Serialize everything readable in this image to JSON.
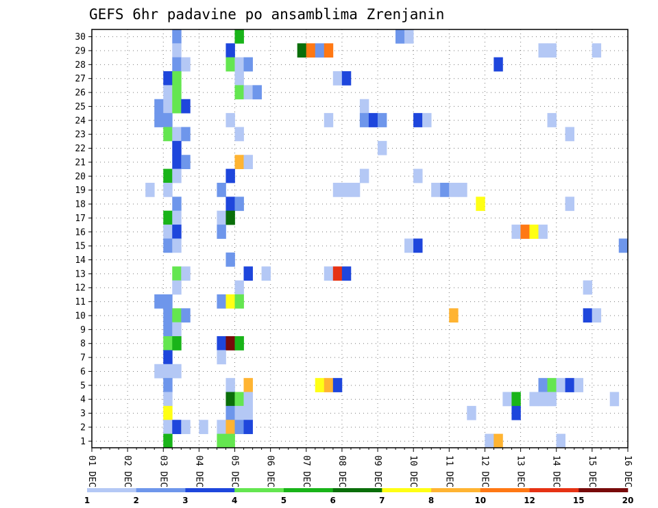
{
  "chart_data": {
    "type": "heatmap",
    "title": "GEFS 6hr padavine po ansamblima Zrenjanin",
    "xlabel": "",
    "ylabel": "",
    "y_ticks": [
      "1",
      "2",
      "3",
      "4",
      "5",
      "6",
      "7",
      "8",
      "9",
      "10",
      "11",
      "12",
      "13",
      "14",
      "15",
      "16",
      "17",
      "18",
      "19",
      "20",
      "21",
      "22",
      "23",
      "24",
      "25",
      "26",
      "27",
      "28",
      "29",
      "30"
    ],
    "ylim": [
      0,
      30
    ],
    "x_ticks": [
      "01 DEC",
      "02 DEC",
      "03 DEC",
      "04 DEC",
      "05 DEC",
      "06 DEC",
      "07 DEC",
      "08 DEC",
      "09 DEC",
      "10 DEC",
      "11 DEC",
      "12 DEC",
      "13 DEC",
      "14 DEC",
      "15 DEC",
      "16 DEC"
    ],
    "xlim_days": [
      1,
      16
    ],
    "steps_per_day": 4,
    "grid": true,
    "levels": [
      "1",
      "2",
      "3",
      "4",
      "5",
      "6",
      "7",
      "8",
      "10",
      "12",
      "15",
      "20"
    ],
    "colors": [
      "#b4c8f5",
      "#6e96eb",
      "#1e46dc",
      "#64e650",
      "#19b419",
      "#0a6e0a",
      "#ffff14",
      "#ffb432",
      "#ff7814",
      "#e63214",
      "#780a0a"
    ],
    "cells": [
      {
        "member": 30,
        "step": 9,
        "cat": 1
      },
      {
        "member": 30,
        "step": 16,
        "cat": 4
      },
      {
        "member": 30,
        "step": 34,
        "cat": 1
      },
      {
        "member": 30,
        "step": 35,
        "cat": 0
      },
      {
        "member": 29,
        "step": 9,
        "cat": 0
      },
      {
        "member": 29,
        "step": 15,
        "cat": 2
      },
      {
        "member": 29,
        "step": 23,
        "cat": 5
      },
      {
        "member": 29,
        "step": 24,
        "cat": 8
      },
      {
        "member": 29,
        "step": 25,
        "cat": 1
      },
      {
        "member": 29,
        "step": 26,
        "cat": 8
      },
      {
        "member": 29,
        "step": 50,
        "cat": 0
      },
      {
        "member": 29,
        "step": 51,
        "cat": 0
      },
      {
        "member": 29,
        "step": 56,
        "cat": 0
      },
      {
        "member": 28,
        "step": 9,
        "cat": 1
      },
      {
        "member": 28,
        "step": 10,
        "cat": 0
      },
      {
        "member": 28,
        "step": 15,
        "cat": 3
      },
      {
        "member": 28,
        "step": 16,
        "cat": 0
      },
      {
        "member": 28,
        "step": 17,
        "cat": 1
      },
      {
        "member": 28,
        "step": 45,
        "cat": 2
      },
      {
        "member": 27,
        "step": 8,
        "cat": 2
      },
      {
        "member": 27,
        "step": 9,
        "cat": 3
      },
      {
        "member": 27,
        "step": 16,
        "cat": 0
      },
      {
        "member": 27,
        "step": 27,
        "cat": 0
      },
      {
        "member": 27,
        "step": 28,
        "cat": 2
      },
      {
        "member": 26,
        "step": 8,
        "cat": 0
      },
      {
        "member": 26,
        "step": 9,
        "cat": 3
      },
      {
        "member": 26,
        "step": 16,
        "cat": 3
      },
      {
        "member": 26,
        "step": 17,
        "cat": 0
      },
      {
        "member": 26,
        "step": 18,
        "cat": 1
      },
      {
        "member": 25,
        "step": 7,
        "cat": 1
      },
      {
        "member": 25,
        "step": 8,
        "cat": 0
      },
      {
        "member": 25,
        "step": 9,
        "cat": 3
      },
      {
        "member": 25,
        "step": 10,
        "cat": 2
      },
      {
        "member": 25,
        "step": 30,
        "cat": 0
      },
      {
        "member": 24,
        "step": 7,
        "cat": 1
      },
      {
        "member": 24,
        "step": 8,
        "cat": 1
      },
      {
        "member": 24,
        "step": 15,
        "cat": 0
      },
      {
        "member": 24,
        "step": 26,
        "cat": 0
      },
      {
        "member": 24,
        "step": 30,
        "cat": 1
      },
      {
        "member": 24,
        "step": 31,
        "cat": 2
      },
      {
        "member": 24,
        "step": 32,
        "cat": 1
      },
      {
        "member": 24,
        "step": 36,
        "cat": 2
      },
      {
        "member": 24,
        "step": 37,
        "cat": 0
      },
      {
        "member": 24,
        "step": 51,
        "cat": 0
      },
      {
        "member": 23,
        "step": 8,
        "cat": 3
      },
      {
        "member": 23,
        "step": 9,
        "cat": 0
      },
      {
        "member": 23,
        "step": 10,
        "cat": 1
      },
      {
        "member": 23,
        "step": 16,
        "cat": 0
      },
      {
        "member": 23,
        "step": 53,
        "cat": 0
      },
      {
        "member": 22,
        "step": 9,
        "cat": 2
      },
      {
        "member": 22,
        "step": 32,
        "cat": 0
      },
      {
        "member": 21,
        "step": 9,
        "cat": 2
      },
      {
        "member": 21,
        "step": 10,
        "cat": 1
      },
      {
        "member": 21,
        "step": 16,
        "cat": 7
      },
      {
        "member": 21,
        "step": 17,
        "cat": 0
      },
      {
        "member": 20,
        "step": 8,
        "cat": 4
      },
      {
        "member": 20,
        "step": 9,
        "cat": 0
      },
      {
        "member": 20,
        "step": 15,
        "cat": 2
      },
      {
        "member": 20,
        "step": 30,
        "cat": 0
      },
      {
        "member": 20,
        "step": 36,
        "cat": 0
      },
      {
        "member": 19,
        "step": 6,
        "cat": 0
      },
      {
        "member": 19,
        "step": 8,
        "cat": 0
      },
      {
        "member": 19,
        "step": 14,
        "cat": 1
      },
      {
        "member": 19,
        "step": 27,
        "cat": 0
      },
      {
        "member": 19,
        "step": 28,
        "cat": 0
      },
      {
        "member": 19,
        "step": 29,
        "cat": 0
      },
      {
        "member": 19,
        "step": 38,
        "cat": 0
      },
      {
        "member": 19,
        "step": 39,
        "cat": 1
      },
      {
        "member": 19,
        "step": 40,
        "cat": 0
      },
      {
        "member": 19,
        "step": 41,
        "cat": 0
      },
      {
        "member": 18,
        "step": 9,
        "cat": 1
      },
      {
        "member": 18,
        "step": 15,
        "cat": 2
      },
      {
        "member": 18,
        "step": 16,
        "cat": 1
      },
      {
        "member": 18,
        "step": 43,
        "cat": 6
      },
      {
        "member": 18,
        "step": 53,
        "cat": 0
      },
      {
        "member": 17,
        "step": 8,
        "cat": 4
      },
      {
        "member": 17,
        "step": 9,
        "cat": 0
      },
      {
        "member": 17,
        "step": 14,
        "cat": 0
      },
      {
        "member": 17,
        "step": 15,
        "cat": 5
      },
      {
        "member": 16,
        "step": 8,
        "cat": 0
      },
      {
        "member": 16,
        "step": 9,
        "cat": 2
      },
      {
        "member": 16,
        "step": 14,
        "cat": 1
      },
      {
        "member": 16,
        "step": 47,
        "cat": 0
      },
      {
        "member": 16,
        "step": 48,
        "cat": 8
      },
      {
        "member": 16,
        "step": 49,
        "cat": 6
      },
      {
        "member": 16,
        "step": 50,
        "cat": 0
      },
      {
        "member": 15,
        "step": 8,
        "cat": 1
      },
      {
        "member": 15,
        "step": 9,
        "cat": 0
      },
      {
        "member": 15,
        "step": 35,
        "cat": 0
      },
      {
        "member": 15,
        "step": 36,
        "cat": 2
      },
      {
        "member": 15,
        "step": 59,
        "cat": 1
      },
      {
        "member": 14,
        "step": 15,
        "cat": 1
      },
      {
        "member": 13,
        "step": 9,
        "cat": 3
      },
      {
        "member": 13,
        "step": 10,
        "cat": 0
      },
      {
        "member": 13,
        "step": 17,
        "cat": 2
      },
      {
        "member": 13,
        "step": 19,
        "cat": 0
      },
      {
        "member": 13,
        "step": 26,
        "cat": 0
      },
      {
        "member": 13,
        "step": 27,
        "cat": 9
      },
      {
        "member": 13,
        "step": 28,
        "cat": 2
      },
      {
        "member": 12,
        "step": 9,
        "cat": 0
      },
      {
        "member": 12,
        "step": 16,
        "cat": 0
      },
      {
        "member": 12,
        "step": 55,
        "cat": 0
      },
      {
        "member": 11,
        "step": 7,
        "cat": 1
      },
      {
        "member": 11,
        "step": 8,
        "cat": 1
      },
      {
        "member": 11,
        "step": 14,
        "cat": 1
      },
      {
        "member": 11,
        "step": 15,
        "cat": 6
      },
      {
        "member": 11,
        "step": 16,
        "cat": 3
      },
      {
        "member": 10,
        "step": 8,
        "cat": 1
      },
      {
        "member": 10,
        "step": 9,
        "cat": 3
      },
      {
        "member": 10,
        "step": 10,
        "cat": 1
      },
      {
        "member": 10,
        "step": 40,
        "cat": 7
      },
      {
        "member": 10,
        "step": 55,
        "cat": 2
      },
      {
        "member": 10,
        "step": 56,
        "cat": 0
      },
      {
        "member": 9,
        "step": 8,
        "cat": 1
      },
      {
        "member": 9,
        "step": 9,
        "cat": 0
      },
      {
        "member": 8,
        "step": 8,
        "cat": 3
      },
      {
        "member": 8,
        "step": 9,
        "cat": 4
      },
      {
        "member": 8,
        "step": 14,
        "cat": 2
      },
      {
        "member": 8,
        "step": 15,
        "cat": 10
      },
      {
        "member": 8,
        "step": 16,
        "cat": 4
      },
      {
        "member": 7,
        "step": 8,
        "cat": 2
      },
      {
        "member": 7,
        "step": 14,
        "cat": 0
      },
      {
        "member": 6,
        "step": 7,
        "cat": 0
      },
      {
        "member": 6,
        "step": 8,
        "cat": 0
      },
      {
        "member": 6,
        "step": 9,
        "cat": 0
      },
      {
        "member": 5,
        "step": 8,
        "cat": 1
      },
      {
        "member": 5,
        "step": 15,
        "cat": 0
      },
      {
        "member": 5,
        "step": 17,
        "cat": 7
      },
      {
        "member": 5,
        "step": 25,
        "cat": 6
      },
      {
        "member": 5,
        "step": 26,
        "cat": 7
      },
      {
        "member": 5,
        "step": 27,
        "cat": 2
      },
      {
        "member": 5,
        "step": 50,
        "cat": 1
      },
      {
        "member": 5,
        "step": 51,
        "cat": 3
      },
      {
        "member": 5,
        "step": 52,
        "cat": 0
      },
      {
        "member": 5,
        "step": 53,
        "cat": 2
      },
      {
        "member": 5,
        "step": 54,
        "cat": 0
      },
      {
        "member": 4,
        "step": 8,
        "cat": 0
      },
      {
        "member": 4,
        "step": 15,
        "cat": 5
      },
      {
        "member": 4,
        "step": 16,
        "cat": 3
      },
      {
        "member": 4,
        "step": 17,
        "cat": 0
      },
      {
        "member": 4,
        "step": 46,
        "cat": 0
      },
      {
        "member": 4,
        "step": 47,
        "cat": 4
      },
      {
        "member": 4,
        "step": 49,
        "cat": 0
      },
      {
        "member": 4,
        "step": 50,
        "cat": 0
      },
      {
        "member": 4,
        "step": 51,
        "cat": 0
      },
      {
        "member": 4,
        "step": 58,
        "cat": 0
      },
      {
        "member": 3,
        "step": 8,
        "cat": 6
      },
      {
        "member": 3,
        "step": 15,
        "cat": 1
      },
      {
        "member": 3,
        "step": 16,
        "cat": 0
      },
      {
        "member": 3,
        "step": 17,
        "cat": 0
      },
      {
        "member": 3,
        "step": 42,
        "cat": 0
      },
      {
        "member": 3,
        "step": 47,
        "cat": 2
      },
      {
        "member": 2,
        "step": 8,
        "cat": 0
      },
      {
        "member": 2,
        "step": 9,
        "cat": 2
      },
      {
        "member": 2,
        "step": 10,
        "cat": 0
      },
      {
        "member": 2,
        "step": 12,
        "cat": 0
      },
      {
        "member": 2,
        "step": 14,
        "cat": 0
      },
      {
        "member": 2,
        "step": 15,
        "cat": 7
      },
      {
        "member": 2,
        "step": 16,
        "cat": 1
      },
      {
        "member": 2,
        "step": 17,
        "cat": 2
      },
      {
        "member": 1,
        "step": 8,
        "cat": 4
      },
      {
        "member": 1,
        "step": 14,
        "cat": 3
      },
      {
        "member": 1,
        "step": 15,
        "cat": 3
      },
      {
        "member": 1,
        "step": 44,
        "cat": 0
      },
      {
        "member": 1,
        "step": 45,
        "cat": 7
      },
      {
        "member": 1,
        "step": 52,
        "cat": 0
      }
    ]
  }
}
